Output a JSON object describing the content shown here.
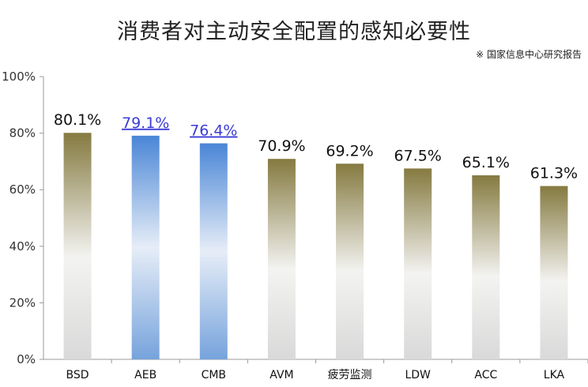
{
  "chart_data": {
    "type": "bar",
    "title": "消费者对主动安全配置的感知必要性",
    "source_note": "※ 国家信息中心研究报告",
    "categories": [
      "BSD",
      "AEB",
      "CMB",
      "AVM",
      "疲劳监测",
      "LDW",
      "ACC",
      "LKA"
    ],
    "values": [
      80.1,
      79.1,
      76.4,
      70.9,
      69.2,
      67.5,
      65.1,
      61.3
    ],
    "value_labels": [
      "80.1%",
      "79.1%",
      "76.4%",
      "70.9%",
      "69.2%",
      "67.5%",
      "65.1%",
      "61.3%"
    ],
    "highlighted": [
      false,
      true,
      true,
      false,
      false,
      false,
      false,
      false
    ],
    "ylim": [
      0,
      100
    ],
    "yticks": [
      0,
      20,
      40,
      60,
      80,
      100
    ],
    "ytick_labels": [
      "0%",
      "20%",
      "40%",
      "60%",
      "80%",
      "100%"
    ],
    "xlabel": "",
    "ylabel": "",
    "grid": false,
    "colors": {
      "default_top": "#8a7e45",
      "default_mid": "#f2f2f2",
      "default_bottom": "#dcdcdc",
      "highlight_top": "#4a86d6",
      "highlight_mid": "#e8eef6",
      "highlight_bottom": "#7fa8dd",
      "link_label": "#3b3bd6"
    }
  }
}
